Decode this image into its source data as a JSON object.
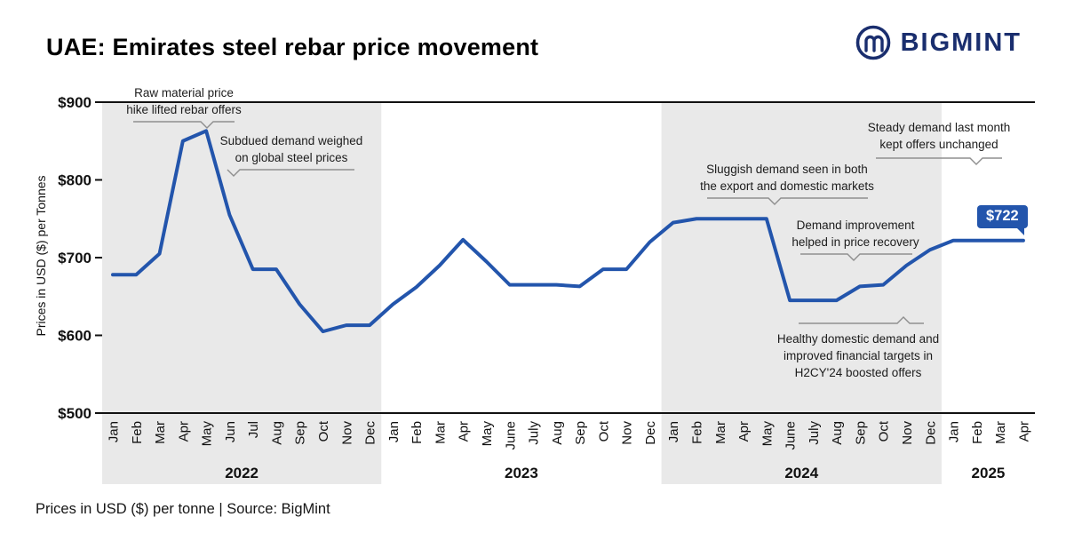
{
  "header": {
    "title": "UAE: Emirates steel rebar price movement",
    "brand": "BIGMINT"
  },
  "footer": {
    "text": "Prices in USD ($) per tonne  |  Source: BigMint"
  },
  "chart_data": {
    "type": "line",
    "title": "UAE: Emirates steel rebar price movement",
    "ylabel": "Prices in USD ($) per Tonnes",
    "ylim": [
      500,
      900
    ],
    "yticks": [
      500,
      600,
      700,
      800,
      900
    ],
    "ytick_labels": [
      "$500",
      "$600",
      "$700",
      "$800",
      "$900"
    ],
    "grid": false,
    "legend": "none",
    "months": [
      "Jan",
      "Feb",
      "Mar",
      "Apr",
      "May",
      "Jun",
      "Jul",
      "Aug",
      "Sep",
      "Oct",
      "Nov",
      "Dec",
      "Jan",
      "Feb",
      "Mar",
      "Apr",
      "May",
      "June",
      "July",
      "Aug",
      "Sep",
      "Oct",
      "Nov",
      "Dec",
      "Jan",
      "Feb",
      "Mar",
      "Apr",
      "May",
      "June",
      "July",
      "Aug",
      "Sep",
      "Oct",
      "Nov",
      "Dec",
      "Jan",
      "Feb",
      "Mar",
      "Apr"
    ],
    "values": [
      678,
      678,
      705,
      850,
      863,
      755,
      685,
      685,
      640,
      605,
      613,
      613,
      640,
      662,
      690,
      723,
      695,
      665,
      665,
      665,
      663,
      685,
      685,
      720,
      745,
      750,
      750,
      750,
      750,
      645,
      645,
      645,
      663,
      665,
      690,
      710,
      722,
      722,
      722,
      722
    ],
    "years": [
      {
        "label": "2022",
        "start": 0,
        "end": 11,
        "shaded": true
      },
      {
        "label": "2023",
        "start": 12,
        "end": 23,
        "shaded": false
      },
      {
        "label": "2024",
        "start": 24,
        "end": 35,
        "shaded": true
      },
      {
        "label": "2025",
        "start": 36,
        "end": 39,
        "shaded": false
      }
    ],
    "end_label": "$722",
    "colors": {
      "line": "#2355ac",
      "band": "#e9e9e9",
      "callout": "#2355ac",
      "brand_navy": "#1a2e6e"
    },
    "annotations": [
      {
        "lines": [
          "Raw material price",
          "hike lifted rebar offers"
        ]
      },
      {
        "lines": [
          "Subdued demand weighed",
          "on global steel prices"
        ]
      },
      {
        "lines": [
          "Sluggish demand seen in both",
          "the export and domestic markets"
        ]
      },
      {
        "lines": [
          "Demand improvement",
          "helped in price recovery"
        ]
      },
      {
        "lines": [
          "Healthy domestic demand and",
          "improved financial targets in",
          "H2CY'24 boosted offers"
        ]
      },
      {
        "lines": [
          "Steady demand last month",
          "kept offers unchanged"
        ]
      }
    ]
  }
}
